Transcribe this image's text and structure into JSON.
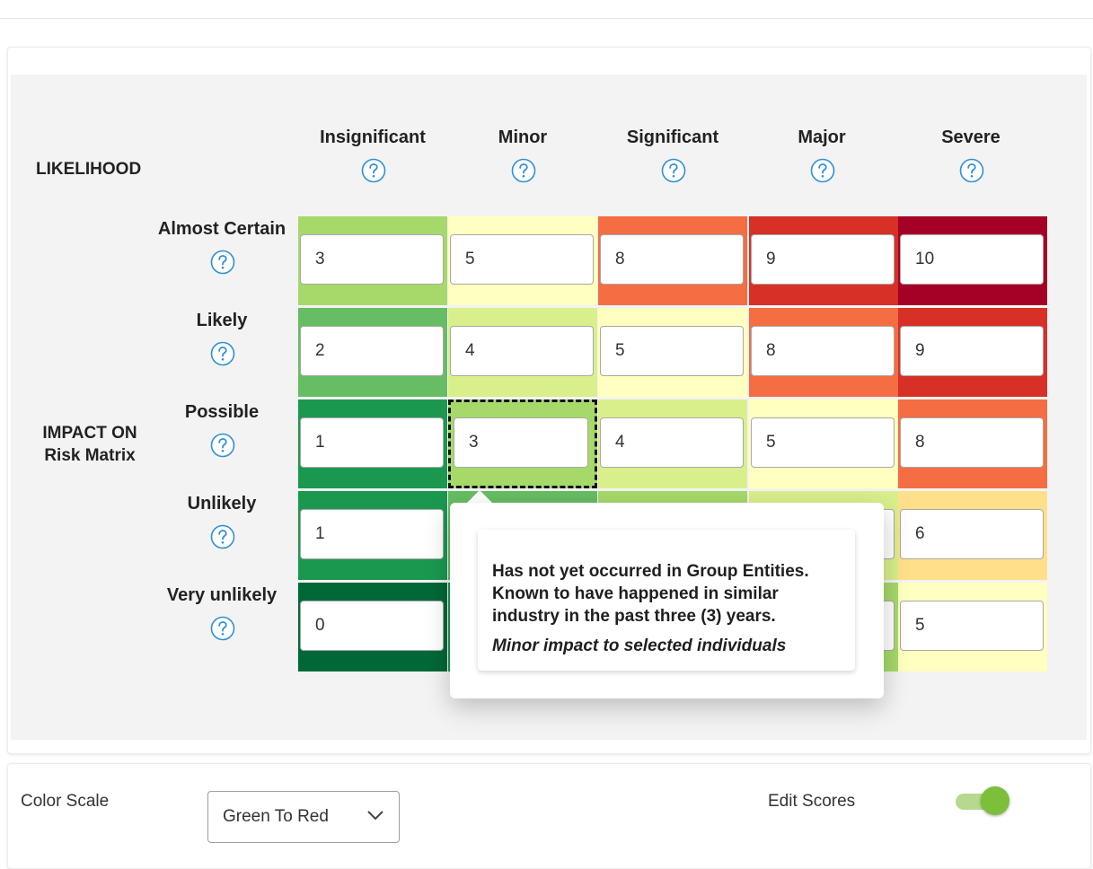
{
  "matrix": {
    "likelihood_label": "LIKELIHOOD",
    "impact_label_line1": "IMPACT ON",
    "impact_label_line2": "Risk Matrix",
    "columns": [
      "Insignificant",
      "Minor",
      "Significant",
      "Major",
      "Severe"
    ],
    "rows": [
      {
        "label": "Almost Certain",
        "scores": [
          "3",
          "5",
          "8",
          "9",
          "10"
        ],
        "colors": [
          "#a6d96a",
          "#ffffbf",
          "#f46d43",
          "#d73027",
          "#a50026"
        ]
      },
      {
        "label": "Likely",
        "scores": [
          "2",
          "4",
          "5",
          "8",
          "9"
        ],
        "colors": [
          "#66bd63",
          "#d9ef8b",
          "#ffffbf",
          "#f46d43",
          "#d73027"
        ]
      },
      {
        "label": "Possible",
        "scores": [
          "1",
          "3",
          "4",
          "5",
          "8"
        ],
        "colors": [
          "#1a9850",
          "#a6d96a",
          "#d9ef8b",
          "#ffffbf",
          "#f46d43"
        ]
      },
      {
        "label": "Unlikely",
        "scores": [
          "1",
          "",
          "",
          "",
          "6"
        ],
        "colors": [
          "#1a9850",
          "#66bd63",
          "#a6d96a",
          "#d9ef8b",
          "#fee08b"
        ]
      },
      {
        "label": "Very unlikely",
        "scores": [
          "0",
          "",
          "",
          "",
          "5"
        ],
        "colors": [
          "#006837",
          "#1a9850",
          "#66bd63",
          "#a6d96a",
          "#ffffbf"
        ]
      }
    ],
    "focused_cell": {
      "row": 2,
      "col": 1
    }
  },
  "popover": {
    "description": "Has not yet occurred in Group Entities. Known to have happened in similar industry in the past three (3) years.",
    "impact": "Minor impact to selected individuals"
  },
  "settings": {
    "color_scale_label": "Color Scale",
    "color_scale_value": "Green To Red",
    "edit_scores_label": "Edit Scores",
    "edit_scores_enabled": true
  },
  "colors": {
    "help_icon": "#2f8fd8",
    "toggle_on": "#7cbf3a"
  }
}
